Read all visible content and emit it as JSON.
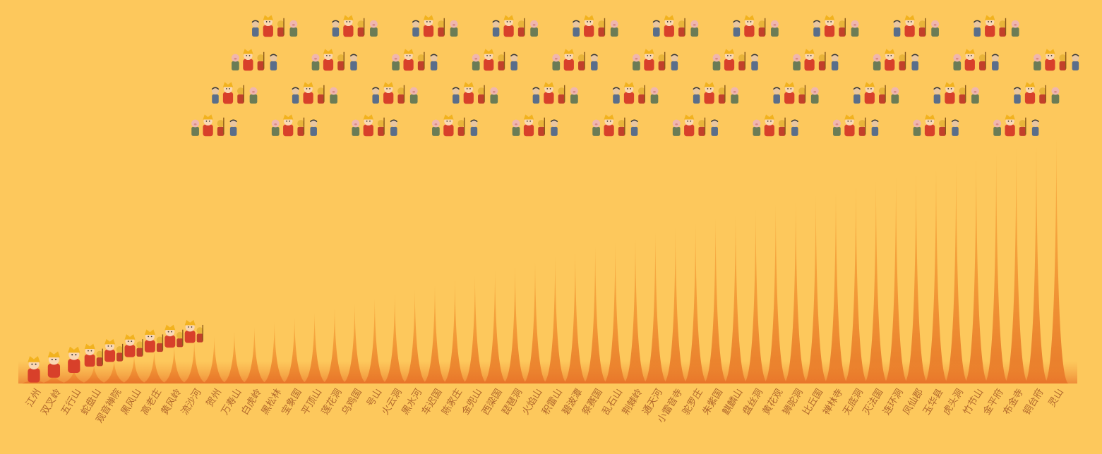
{
  "colors": {
    "background": "#FDC85C",
    "spike_light": "#F5A43C",
    "spike_dark": "#E8762A",
    "label": "#B36A2E",
    "robe": "#D8402A",
    "hat": "#F2B21E",
    "skin": "#FAD7B3",
    "monkey": "#E8B43A",
    "pig": "#F0B6AE",
    "sand": "#5A6E8A"
  },
  "chart_data": {
    "type": "bar",
    "title": "",
    "xlabel": "",
    "ylabel": "",
    "categories": [
      "江州",
      "双叉岭",
      "五行山",
      "蛇盘山",
      "观音禅院",
      "黑风山",
      "高老庄",
      "黄风岭",
      "流沙河",
      "贺州",
      "万寿山",
      "白虎岭",
      "黑松林",
      "宝象国",
      "平顶山",
      "莲花洞",
      "乌鸡国",
      "号山",
      "火云洞",
      "黑水河",
      "车迟国",
      "陈家庄",
      "金兜山",
      "西梁国",
      "琵琶洞",
      "火焰山",
      "积雷山",
      "碧波潭",
      "祭赛国",
      "乱石山",
      "荆棘岭",
      "通天河",
      "小雷音寺",
      "驼罗庄",
      "朱紫国",
      "麒麟山",
      "盘丝洞",
      "黄花观",
      "狮驼洞",
      "比丘国",
      "禅林寺",
      "无底洞",
      "灭法国",
      "连环洞",
      "凤仙郡",
      "玉华县",
      "虎头洞",
      "竹节山",
      "金平府",
      "布金寺",
      "铜台府",
      "灵山"
    ],
    "values": [
      1,
      2,
      3,
      4,
      5,
      6,
      7,
      8,
      9,
      10,
      11,
      12,
      13,
      14,
      15,
      16,
      17,
      18,
      19,
      20,
      21,
      22,
      23,
      24,
      25,
      26,
      27,
      28,
      29,
      30,
      31,
      32,
      33,
      34,
      35,
      36,
      37,
      38,
      39,
      40,
      41,
      42,
      43,
      44,
      45,
      46,
      47,
      48,
      49,
      50,
      51,
      52
    ],
    "ylim": [
      0,
      52
    ],
    "grid": false,
    "legend": "none"
  }
}
